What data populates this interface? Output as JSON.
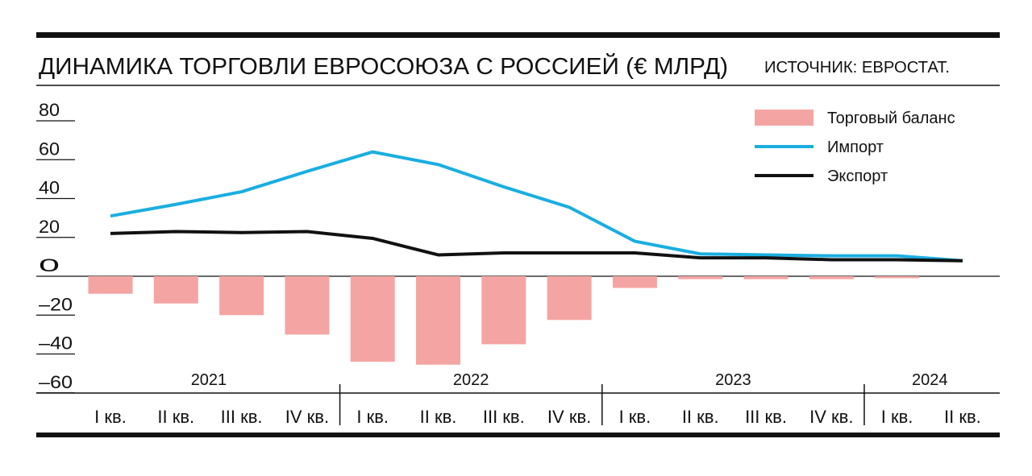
{
  "chart_data": {
    "type": "bar-line",
    "title": "ДИНАМИКА ТОРГОВЛИ ЕВРОСОЮЗА С РОССИЕЙ (€ МЛРД)",
    "source": "ИСТОЧНИК: ЕВРОСТАТ.",
    "categories": [
      "I кв.",
      "II кв.",
      "III кв.",
      "IV кв.",
      "I кв.",
      "II кв.",
      "III кв.",
      "IV кв.",
      "I кв.",
      "II кв.",
      "III кв.",
      "IV кв.",
      "I кв.",
      "II кв."
    ],
    "year_groups": [
      {
        "name": "2021",
        "size": 4
      },
      {
        "name": "2022",
        "size": 4
      },
      {
        "name": "2023",
        "size": 4
      },
      {
        "name": "2024",
        "size": 2
      }
    ],
    "series": [
      {
        "name": "Торговый баланс",
        "kind": "bar",
        "color": "#f4a5a3",
        "values": [
          -9,
          -14,
          -20,
          -30,
          -44,
          -45.5,
          -35,
          -22.5,
          -6,
          -1.5,
          -1.5,
          -1.5,
          -1,
          0
        ]
      },
      {
        "name": "Импорт",
        "kind": "line",
        "color": "#1aaee0",
        "values": [
          31,
          37,
          43.5,
          54,
          64,
          57.5,
          46,
          35.5,
          18,
          11.5,
          11,
          10.5,
          10.5,
          8
        ]
      },
      {
        "name": "Экспорт",
        "kind": "line",
        "color": "#111111",
        "values": [
          22,
          23,
          22.5,
          23,
          19.5,
          11,
          12,
          12,
          12,
          9.5,
          9.5,
          8.5,
          8.5,
          8
        ]
      }
    ],
    "ylim": [
      -60,
      80
    ],
    "yticks": [
      80,
      60,
      40,
      20,
      0,
      {
        "value": -20,
        "label": "–20"
      },
      {
        "value": -40,
        "label": "–40"
      },
      {
        "value": -60,
        "label": "–60"
      }
    ]
  }
}
